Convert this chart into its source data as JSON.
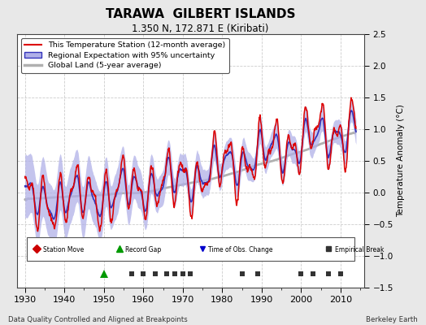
{
  "title": "TARAWA  GILBERT ISLANDS",
  "subtitle": "1.350 N, 172.871 E (Kiribati)",
  "xlabel_years": [
    1930,
    1940,
    1950,
    1960,
    1970,
    1980,
    1990,
    2000,
    2010
  ],
  "ylabel": "Temperature Anomaly (°C)",
  "ylim": [
    -1.5,
    2.5
  ],
  "xlim": [
    1928,
    2016
  ],
  "yticks": [
    -1.5,
    -1.0,
    -0.5,
    0.0,
    0.5,
    1.0,
    1.5,
    2.0,
    2.5
  ],
  "background_color": "#e8e8e8",
  "plot_bg_color": "#ffffff",
  "legend_line_station": "This Temperature Station (12-month average)",
  "legend_line_regional": "Regional Expectation with 95% uncertainty",
  "legend_line_global": "Global Land (5-year average)",
  "station_color": "#dd0000",
  "regional_color": "#3333bb",
  "regional_fill_color": "#b0b0e8",
  "global_color": "#b0b0b0",
  "footer_left": "Data Quality Controlled and Aligned at Breakpoints",
  "footer_right": "Berkeley Earth",
  "marker_station_move_color": "#cc0000",
  "marker_record_gap_color": "#009900",
  "marker_obs_change_color": "#0000cc",
  "marker_empirical_color": "#333333",
  "record_gap_years": [
    1950
  ],
  "obs_change_years": [],
  "empirical_break_years": [
    1957,
    1960,
    1963,
    1966,
    1968,
    1970,
    1972,
    1985,
    1989,
    2000,
    2003,
    2007,
    2010
  ],
  "seed": 42
}
